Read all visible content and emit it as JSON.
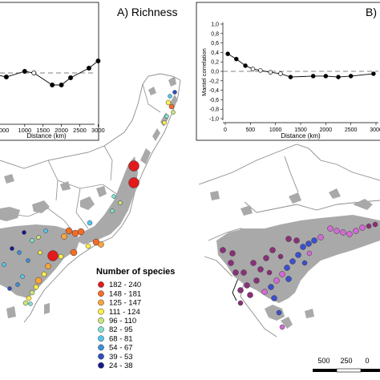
{
  "panel_a": {
    "title": "A) Richness",
    "inset": {
      "xlabel": "Distance (km)",
      "x_ticks": [
        "1000",
        "1500",
        "2000",
        "2500",
        "3000"
      ],
      "first_tick_visible": "000",
      "series": [
        {
          "distance": 0,
          "value": 0.0
        },
        {
          "distance": 500,
          "value": -0.05
        },
        {
          "distance": 1000,
          "value": 0.02
        },
        {
          "distance": 1250,
          "value": 0.0
        },
        {
          "distance": 1750,
          "value": -0.15
        },
        {
          "distance": 2000,
          "value": -0.15
        },
        {
          "distance": 2250,
          "value": -0.06
        },
        {
          "distance": 2750,
          "value": 0.06
        },
        {
          "distance": 3000,
          "value": 0.15
        }
      ],
      "open_points": [
        3
      ]
    }
  },
  "panel_b": {
    "title": "B)",
    "inset": {
      "ylabel": "Mantel correlation",
      "xlabel": "Distance (km)",
      "y_ticks": [
        "1,0",
        "0,8",
        "0,6",
        "0,4",
        "0,2",
        "0,0",
        "-0,2",
        "-0,4",
        "-0,6",
        "-0,8",
        "-1,0"
      ],
      "x_ticks": [
        "0",
        "500",
        "1000",
        "1500",
        "2000",
        "2500",
        "3000"
      ],
      "series": [
        {
          "distance": 50,
          "value": 0.37
        },
        {
          "distance": 220,
          "value": 0.26
        },
        {
          "distance": 400,
          "value": 0.12
        },
        {
          "distance": 550,
          "value": 0.05
        },
        {
          "distance": 700,
          "value": 0.02
        },
        {
          "distance": 900,
          "value": -0.02
        },
        {
          "distance": 1100,
          "value": -0.05
        },
        {
          "distance": 1300,
          "value": -0.12
        },
        {
          "distance": 1750,
          "value": -0.1
        },
        {
          "distance": 2000,
          "value": -0.1
        },
        {
          "distance": 2250,
          "value": -0.12
        },
        {
          "distance": 2500,
          "value": -0.1
        },
        {
          "distance": 2950,
          "value": -0.05
        }
      ],
      "open_points": [
        3,
        4,
        5,
        6
      ]
    },
    "scale_bar": {
      "labels": [
        "500",
        "250",
        "0"
      ]
    }
  },
  "legend": {
    "title": "Number of species",
    "classes": [
      {
        "label": "182 - 240",
        "color": "#e31a1c"
      },
      {
        "label": "148 - 181",
        "color": "#f46d27"
      },
      {
        "label": "125 - 147",
        "color": "#fba53a"
      },
      {
        "label": "111 - 124",
        "color": "#fff04a"
      },
      {
        "label": "96 - 110",
        "color": "#c8e87c"
      },
      {
        "label": "82 - 95",
        "color": "#7fe3d0"
      },
      {
        "label": "68 - 81",
        "color": "#54c6f0"
      },
      {
        "label": "54 - 67",
        "color": "#3f8fd8"
      },
      {
        "label": "39 - 53",
        "color": "#2e4fc0"
      },
      {
        "label": "24 - 38",
        "color": "#141a8c"
      }
    ]
  },
  "colors": {
    "forest": "#a9a9a9",
    "border": "#8c8c8c",
    "cluster_purple": "#8b2f7a",
    "cluster_pink": "#d46ad6",
    "cluster_blue": "#3c4fd0"
  }
}
